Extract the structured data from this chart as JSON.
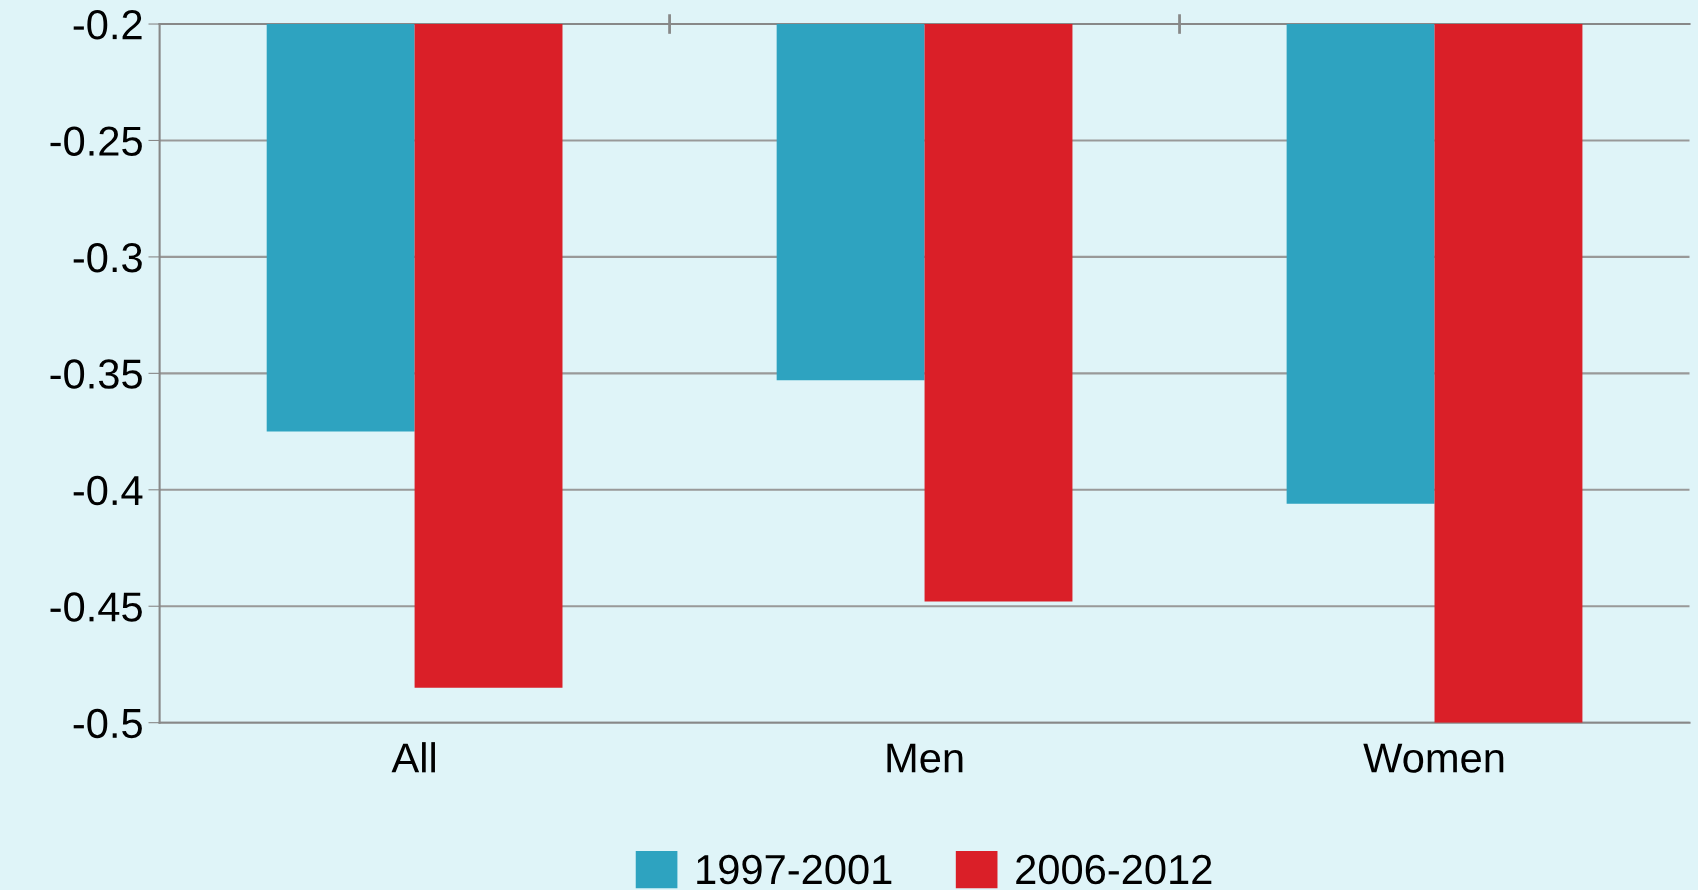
{
  "chart_data": {
    "type": "bar",
    "categories": [
      "All",
      "Men",
      "Women"
    ],
    "series": [
      {
        "name": "1997-2001",
        "color": "#2ea3c0",
        "values": [
          -0.375,
          -0.353,
          -0.406
        ]
      },
      {
        "name": "2006-2012",
        "color": "#da1f28",
        "values": [
          -0.485,
          -0.448,
          -0.5
        ]
      }
    ],
    "ylim": [
      -0.5,
      -0.2
    ],
    "yticks": [
      -0.5,
      -0.45,
      -0.4,
      -0.35,
      -0.3,
      -0.25,
      -0.2
    ],
    "grid": "y",
    "legend": "bottom"
  }
}
